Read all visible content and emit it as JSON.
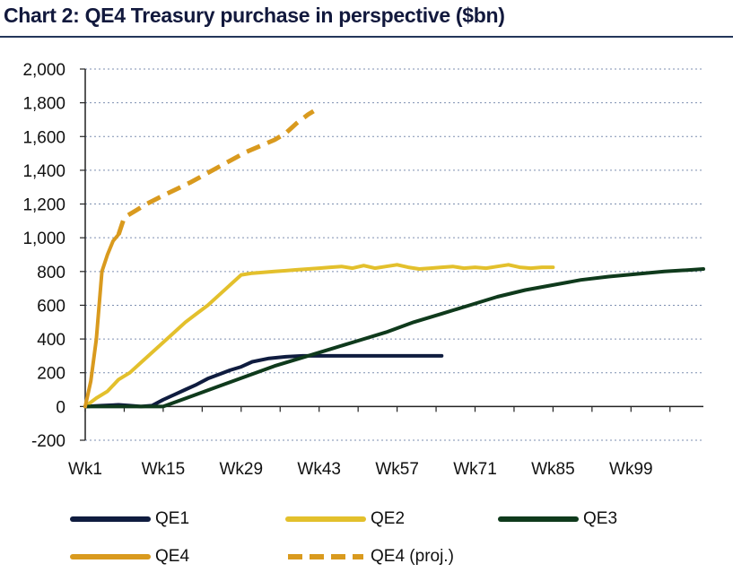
{
  "chart_data": {
    "type": "line",
    "title": "Chart 2: QE4 Treasury purchase in perspective ($bn)",
    "xlabel": "",
    "ylabel": "",
    "x_tick_labels": [
      "Wk1",
      "Wk15",
      "Wk29",
      "Wk43",
      "Wk57",
      "Wk71",
      "Wk85",
      "Wk99"
    ],
    "x_ticks": [
      1,
      15,
      29,
      43,
      57,
      71,
      85,
      99
    ],
    "xlim": [
      1,
      112
    ],
    "ylim": [
      -200,
      2000
    ],
    "y_ticks": [
      -200,
      0,
      200,
      400,
      600,
      800,
      1000,
      1200,
      1400,
      1600,
      1800,
      2000
    ],
    "y_tick_labels": [
      "-200",
      "0",
      "200",
      "400",
      "600",
      "800",
      "1,000",
      "1,200",
      "1,400",
      "1,600",
      "1,800",
      "2,000"
    ],
    "grid": true,
    "legend_position": "bottom",
    "series": [
      {
        "name": "QE1",
        "color": "#0f1c3f",
        "dashed": false,
        "x": [
          1,
          4,
          7,
          9,
          11,
          13,
          15,
          17,
          19,
          21,
          23,
          25,
          27,
          29,
          31,
          34,
          37,
          40,
          43,
          47,
          52,
          57,
          62,
          65
        ],
        "y": [
          0,
          5,
          10,
          5,
          0,
          5,
          40,
          70,
          100,
          130,
          165,
          190,
          215,
          235,
          265,
          285,
          295,
          300,
          300,
          300,
          300,
          300,
          300,
          300
        ]
      },
      {
        "name": "QE2",
        "color": "#e3c02c",
        "dashed": false,
        "x": [
          1,
          3,
          5,
          7,
          9,
          11,
          13,
          15,
          17,
          19,
          21,
          23,
          25,
          27,
          29,
          31,
          33,
          35,
          37,
          39,
          41,
          43,
          45,
          47,
          49,
          51,
          53,
          55,
          57,
          59,
          61,
          63,
          65,
          67,
          69,
          71,
          73,
          75,
          77,
          79,
          81,
          83,
          85
        ],
        "y": [
          0,
          50,
          90,
          160,
          200,
          260,
          320,
          380,
          440,
          500,
          550,
          600,
          660,
          720,
          780,
          790,
          795,
          800,
          805,
          810,
          815,
          820,
          825,
          830,
          820,
          835,
          820,
          830,
          840,
          825,
          815,
          820,
          825,
          830,
          820,
          825,
          820,
          830,
          840,
          825,
          820,
          825,
          825
        ]
      },
      {
        "name": "QE3",
        "color": "#0f3a1c",
        "dashed": false,
        "x": [
          1,
          5,
          9,
          11,
          13,
          15,
          20,
          25,
          30,
          35,
          40,
          45,
          50,
          55,
          60,
          65,
          70,
          75,
          80,
          85,
          90,
          95,
          100,
          105,
          110,
          112
        ],
        "y": [
          0,
          0,
          0,
          0,
          0,
          0,
          60,
          120,
          180,
          240,
          290,
          340,
          390,
          440,
          500,
          550,
          600,
          650,
          690,
          720,
          750,
          770,
          785,
          800,
          810,
          815
        ]
      },
      {
        "name": "QE4",
        "color": "#d99a1e",
        "dashed": false,
        "x": [
          1,
          2,
          3,
          4,
          5,
          6,
          7
        ],
        "y": [
          0,
          150,
          400,
          800,
          900,
          980,
          1020
        ]
      },
      {
        "name": "QE4 (proj.)",
        "color": "#d99a1e",
        "dashed": true,
        "x": [
          7,
          8,
          10,
          12,
          15,
          20,
          25,
          30,
          35,
          37,
          38,
          39,
          40,
          41,
          42
        ],
        "y": [
          1020,
          1120,
          1160,
          1200,
          1250,
          1330,
          1420,
          1510,
          1580,
          1620,
          1650,
          1680,
          1705,
          1730,
          1750
        ]
      }
    ]
  }
}
